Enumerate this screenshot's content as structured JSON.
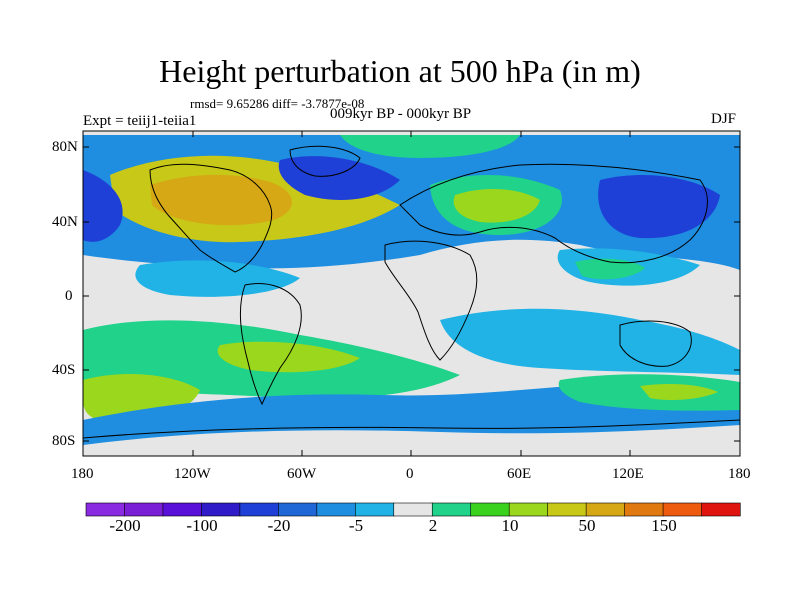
{
  "title": "Height perturbation at 500 hPa (in m)",
  "stats": "rmsd= 9.65286 diff= -3.7877e-08",
  "expt": "Expt = teiij1-teiia1",
  "period": "009kyr BP - 000kyr BP",
  "season": "DJF",
  "lat_labels": [
    "80N",
    "40N",
    "0",
    "40S",
    "80S"
  ],
  "lon_labels": [
    "180",
    "120W",
    "60W",
    "0",
    "60E",
    "120E",
    "180"
  ],
  "colorbar": {
    "colors": [
      "#8a2be2",
      "#7a1fd6",
      "#5a10d8",
      "#2f1cc8",
      "#1e40d6",
      "#1f66d6",
      "#1f8ee0",
      "#21b3e6",
      "#e6e6e6",
      "#20d28a",
      "#3ad21c",
      "#9bd71c",
      "#c8c818",
      "#d6a815",
      "#e07a10",
      "#ee5b0e",
      "#e0140e"
    ],
    "labels": [
      "-200",
      "-100",
      "-20",
      "-5",
      "2",
      "10",
      "50",
      "150"
    ]
  }
}
